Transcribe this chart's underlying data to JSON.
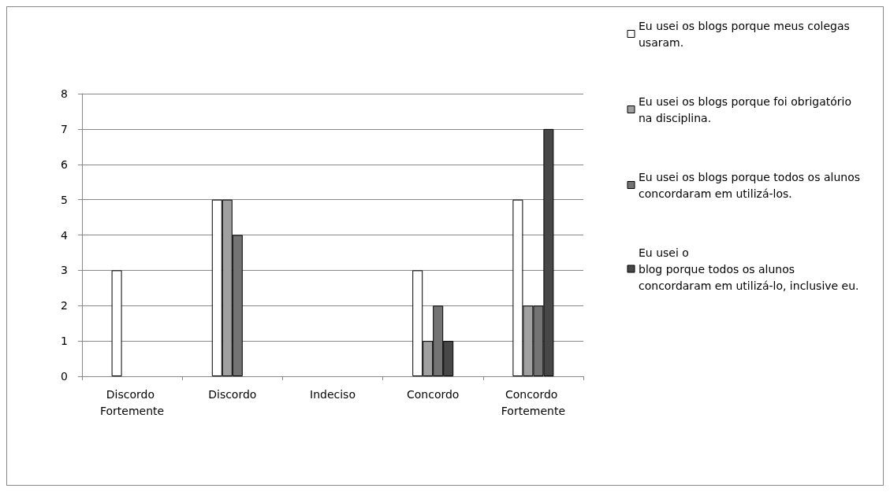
{
  "chart_data": {
    "type": "bar",
    "categories": [
      "Discordo Fortemente",
      "Discordo",
      "Indeciso",
      "Concordo",
      "Concordo Fortemente"
    ],
    "series": [
      {
        "name": "Eu usei os blogs porque meus colegas usaram.",
        "color": "#ffffff",
        "values": [
          3,
          5,
          null,
          3,
          5
        ]
      },
      {
        "name": "Eu usei os blogs porque foi obrigatório na disciplina.",
        "color": "#a0a0a0",
        "values": [
          null,
          5,
          null,
          1,
          2
        ]
      },
      {
        "name": "Eu usei os blogs porque todos os alunos concordaram em utilizá-los.",
        "color": "#737373",
        "values": [
          null,
          4,
          null,
          2,
          2
        ]
      },
      {
        "name": "Eu usei o\nblog porque todos os alunos concordaram em utilizá-lo, inclusive eu.",
        "color": "#474747",
        "values": [
          null,
          null,
          null,
          1,
          7
        ]
      }
    ],
    "ylim": [
      0,
      8
    ],
    "yticks": [
      0,
      1,
      2,
      3,
      4,
      5,
      6,
      7,
      8
    ],
    "grid": "y",
    "legend": "right"
  }
}
